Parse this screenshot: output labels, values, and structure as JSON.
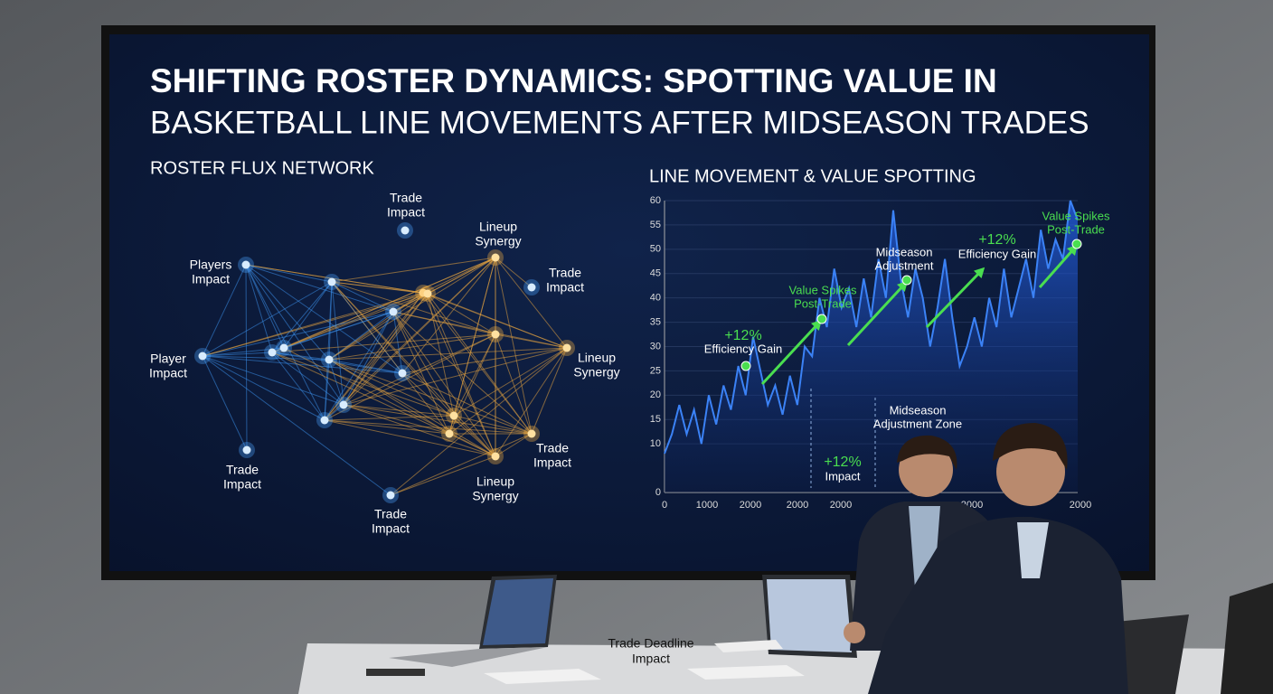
{
  "screen": {
    "title": [
      "SHIFTING ROSTER DYNAMICS: SPOTTING VALUE IN",
      "BASKETBALL LINE MOVEMENTS AFTER MIDSEASON TRADES"
    ],
    "network": {
      "title": "ROSTER FLUX NETWORK",
      "labels": [
        [
          "Trade",
          "Impact"
        ],
        [
          "Lineup",
          "Synergy"
        ],
        [
          "Players",
          "Impact"
        ],
        [
          "Trade",
          "Impact"
        ],
        [
          "Player",
          "Impact"
        ],
        [
          "Lineup",
          "Synergy"
        ],
        [
          "Trade",
          "Impact"
        ],
        [
          "Trade",
          "Impact"
        ],
        [
          "Lineup",
          "Synergy"
        ],
        [
          "Trade",
          "Impact"
        ]
      ]
    }
  },
  "chart_data": {
    "type": "line",
    "title": "LINE MOVEMENT & VALUE SPOTTING",
    "ylim": [
      0,
      60
    ],
    "yticks": [
      0,
      10,
      15,
      20,
      25,
      30,
      35,
      40,
      45,
      50,
      55,
      60
    ],
    "xtick_labels": [
      "0",
      "1000",
      "2000",
      "2000",
      "2000",
      "2000",
      "2000"
    ],
    "series": [
      {
        "color": "#3b82f6",
        "values": [
          8,
          12,
          18,
          12,
          17,
          10,
          20,
          14,
          22,
          17,
          26,
          20,
          32,
          25,
          18,
          22,
          16,
          24,
          18,
          30,
          28,
          40,
          34,
          46,
          38,
          42,
          34,
          44,
          36,
          48,
          40,
          58,
          44,
          36,
          46,
          40,
          30,
          38,
          48,
          36,
          26,
          30,
          36,
          30,
          40,
          34,
          46,
          36,
          42,
          48,
          40,
          54,
          46,
          52,
          48,
          60,
          56
        ]
      }
    ],
    "annotations": [
      [
        "+12%",
        "Efficiency Gain"
      ],
      [
        "Value Spikes",
        "Post-Trade"
      ],
      [
        "Midseason",
        "Adjustment"
      ],
      [
        "+12%",
        "Efficiency Gain"
      ],
      [
        "Value Spikes",
        "Post-Trade"
      ],
      [
        "Midseason",
        "Adjustment Zone"
      ],
      [
        "+12%",
        "Impact"
      ]
    ]
  },
  "table": {
    "label": [
      "Trade Deadline",
      "Impact"
    ]
  }
}
